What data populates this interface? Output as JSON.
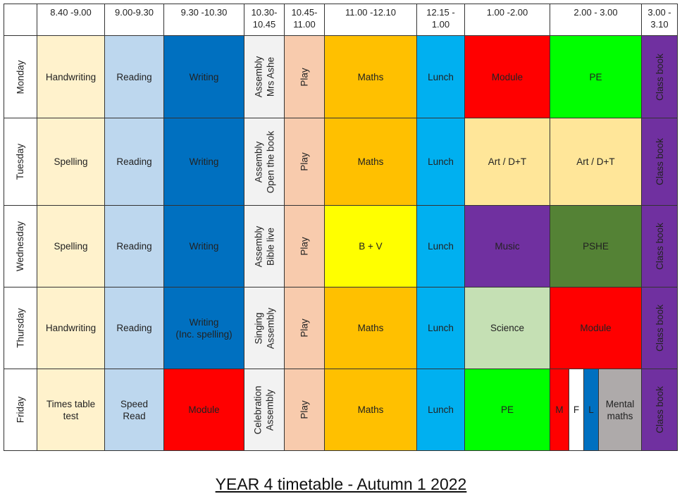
{
  "header": {
    "t1": "8.40 -9.00",
    "t2": "9.00-9.30",
    "t3": "9.30 -10.30",
    "t4a": "10.30-",
    "t4b": "10.45",
    "t5a": "10.45-",
    "t5b": "11.00",
    "t6": "11.00 -12.10",
    "t7a": "12.15 -",
    "t7b": "1.00",
    "t8": "1.00 -2.00",
    "t9": "2.00 - 3.00",
    "t10a": "3.00 -",
    "t10b": "3.10"
  },
  "days": {
    "mon": "Monday",
    "tue": "Tuesday",
    "wed": "Wednesday",
    "thu": "Thursday",
    "fri": "Friday"
  },
  "monday": {
    "c1": "Handwriting",
    "c2": "Reading",
    "c3": "Writing",
    "c4a": "Assembly",
    "c4b": "Mrs Ashe",
    "c5": "Play",
    "c6": "Maths",
    "c7": "Lunch",
    "c8": "Module",
    "c9": "PE",
    "c10": "Class book"
  },
  "tuesday": {
    "c1": "Spelling",
    "c2": "Reading",
    "c3": "Writing",
    "c4a": "Assembly",
    "c4b": "Open the book",
    "c5": "Play",
    "c6": "Maths",
    "c7": "Lunch",
    "c8": "Art / D+T",
    "c9": "Art / D+T",
    "c10": "Class book"
  },
  "wednesday": {
    "c1": "Spelling",
    "c2": "Reading",
    "c3": "Writing",
    "c4a": "Assembly",
    "c4b": "Bible live",
    "c5": "Play",
    "c6": "B + V",
    "c7": "Lunch",
    "c8": "Music",
    "c9": "PSHE",
    "c10": "Class book"
  },
  "thursday": {
    "c1": "Handwriting",
    "c2": "Reading",
    "c3a": "Writing",
    "c3b": "(Inc. spelling)",
    "c4a": "Singing",
    "c4b": "Assembly",
    "c5": "Play",
    "c6": "Maths",
    "c7": "Lunch",
    "c8": "Science",
    "c9": "Module",
    "c10": "Class book"
  },
  "friday": {
    "c1a": "Times table",
    "c1b": "test",
    "c2a": "Speed",
    "c2b": "Read",
    "c3": "Module",
    "c4a": "Celebration",
    "c4b": "Assembly",
    "c5": "Play",
    "c6": "Maths",
    "c7": "Lunch",
    "c8": "PE",
    "c9m": "M",
    "c9f": "F",
    "c9l": "L",
    "c9a": "Mental",
    "c9b": "maths",
    "c10": "Class book"
  },
  "footer": {
    "title": "YEAR 4 timetable - Autumn 1 2022"
  },
  "colors": {
    "cream": "#FFF2CC",
    "light_blue": "#BDD7EE",
    "dark_blue": "#0070C0",
    "light_grey": "#F2F2F2",
    "peach": "#F8CBAD",
    "orange": "#FFC000",
    "cyan": "#00B0F0",
    "red": "#FF0000",
    "green": "#00FF00",
    "purple": "#7030A0",
    "tan": "#FFE699",
    "yellow": "#FFFF00",
    "olive": "#548235",
    "sage": "#C5E0B4",
    "grey": "#AEAAAA"
  }
}
